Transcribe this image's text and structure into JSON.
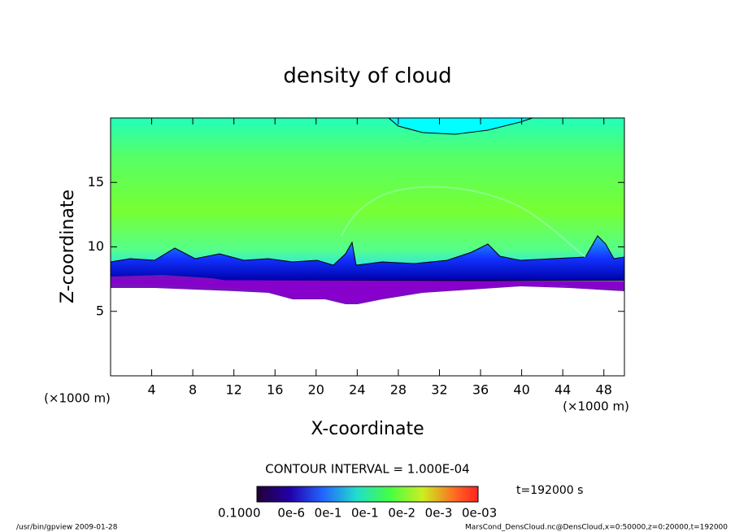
{
  "chart_data": {
    "type": "contour",
    "title": "density of cloud",
    "x_label": "X-coordinate",
    "y_label": "Z-coordinate",
    "x_unit_left": "(×1000 m)",
    "x_unit_right": "(×1000 m)",
    "xlim": [
      0,
      50
    ],
    "ylim": [
      0,
      20
    ],
    "xticks": [
      4,
      8,
      12,
      16,
      20,
      24,
      28,
      32,
      36,
      40,
      44,
      48
    ],
    "yticks": [
      5,
      10,
      15
    ],
    "contour_interval": "CONTOUR INTERVAL = 1.000E-04",
    "time_label": "t=192000 s",
    "colorbar_labels": [
      "0.1000",
      "0e-6",
      "0e-1",
      "0e-1",
      "0e-2",
      "0e-3",
      "0e-03"
    ],
    "footer_left": "/usr/bin/gpview   2009-01-28",
    "footer_right": "MarsCond_DensCloud.nc@DensCloud,x=0:50000,z=0:20000,t=192000"
  }
}
